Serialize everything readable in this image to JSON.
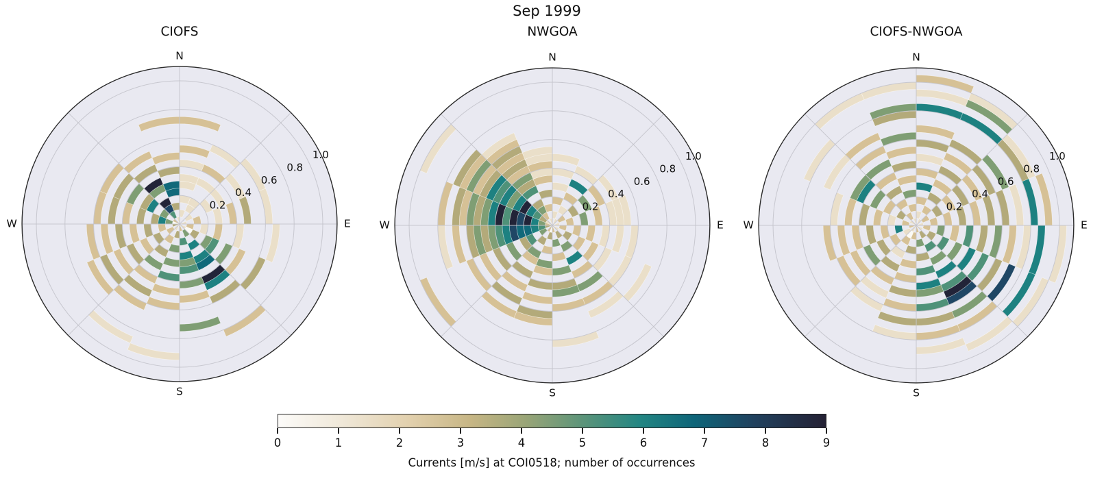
{
  "title": "Sep 1999",
  "polar": {
    "cardinal_labels": [
      "N",
      "E",
      "S",
      "W"
    ],
    "r_tick_labels": [
      "0.2",
      "0.4",
      "0.6",
      "0.8",
      "1.0"
    ],
    "r_ticks": [
      0.2,
      0.4,
      0.6,
      0.8,
      1.0
    ],
    "r_max": 1.1,
    "r_label_angle_deg": 64,
    "sector_count": 16,
    "sector_width_deg": 22.5,
    "ring_width": 0.05
  },
  "chart_data": [
    {
      "type": "polar_histogram",
      "title": "CIOFS",
      "radial_quantity": "current speed [m/s]",
      "value_quantity": "number of occurrences",
      "encoding": "sectors: 16 strings clockwise from N, one char per 0.05 m/s ring from r=0; digit = occurrences (color), '.' = no data",
      "sectors": [
        ".1.1.11.1.2...2",
        "..11..1.2..1",
        ".1..1.1..1..1",
        "1.2..1.2.3..1",
        ".2.1.2..1....1",
        "103.45.4.2..3",
        ".4.6.67.96.3....2",
        "2.5.645.4.2...4",
        ".3.4.4.5.2.2......1",
        "1.2.3.4.2.3.2....1",
        ".2.3.2.3.2.3.2",
        "3.2.3.2.3.2.2",
        "0463.3.2.3.2",
        "2.4.63.4.3.2",
        ".589.49.3.2",
        "1.3.77.3.2....2"
      ]
    },
    {
      "type": "polar_histogram",
      "title": "NWGOA",
      "radial_quantity": "current speed [m/s]",
      "value_quantity": "number of occurrences",
      "encoding": "sectors: 16 strings clockwise from N, one char per 0.05 m/s ring from r=0; digit = occurrences (color), '.' = no data",
      "sectors": [
        ".1.2.1.1.1",
        "1.1.2.6.1",
        ".2.3.4.2.1",
        "1.2.4.2.111",
        ".2.2.2.1.1.1",
        "1.3.2.2.1..1..1",
        ".3.4.6.2.4.2.1",
        "2.4.2.4.34.2....1",
        "03.2.42.3.2.32",
        "2.3.42.3.2.3.2",
        ".4.53.4.3.2.2......2",
        "356778654343.2.1",
        "24698959643423.2",
        "135696465632423....1",
        ".243.534232321",
        "1.2.3.21211"
      ]
    },
    {
      "type": "polar_histogram",
      "title": "CIOFS-NWGOA",
      "radial_quantity": "current speed [m/s]",
      "value_quantity": "number of occurrences",
      "encoding": "sectors: 16 strings clockwise from N, one char per 0.05 m/s ring from r=0; digit = occurrences (color), '.' = no data",
      "sectors": [
        ".1.2.6.2.1.3.2..6.1.2",
        "1.2.3.2.3.2.3...6.41",
        ".2.3.2.3.2.3.4..31",
        "1.2.2.3.2.3.3.1.6.2",
        ".2.4.2.5.3.4.2.1.6..1",
        "1.3.5.4.6.5.3.8..6.1",
        ".3.5.4.6.598.4.2..1",
        "2.4.3.5.64.5.3.2.1",
        ".2.3.2.2.3.2.3.1",
        "102.1.3.2.1.1",
        ".1.2.3.4.2.2",
        "2.6.2.3.2.2.2",
        ".2.1.2.3.2.1",
        "1.3.2.4.64...1..1",
        ".2.2.3.2.4.2.2.....1",
        "1.2.4.2.3.2.4..34..1"
      ]
    }
  ],
  "colorbar": {
    "label": "Currents [m/s] at COI0518; number of occurrences",
    "min": 0,
    "max": 9,
    "ticks": [
      "0",
      "1",
      "2",
      "3",
      "4",
      "5",
      "6",
      "7",
      "8",
      "9"
    ],
    "value_colors": [
      "#fbfaf5",
      "#eadfc9",
      "#d6c196",
      "#b3aa7a",
      "#7f9e74",
      "#4f9279",
      "#1d8181",
      "#11697a",
      "#1f4765",
      "#222438"
    ],
    "gradient_stops": [
      [
        0.0,
        "#fcfbf9"
      ],
      [
        0.12,
        "#efe7d7"
      ],
      [
        0.24,
        "#e2d0ad"
      ],
      [
        0.35,
        "#c7b685"
      ],
      [
        0.45,
        "#9aa577"
      ],
      [
        0.55,
        "#5f9579"
      ],
      [
        0.66,
        "#238683"
      ],
      [
        0.76,
        "#0e6579"
      ],
      [
        0.87,
        "#21415e"
      ],
      [
        1.0,
        "#242134"
      ]
    ]
  },
  "style": {
    "disc_color": "#e9e9f1",
    "grid_color": "#c3c3cb",
    "outer_ring_color": "#2a2a2a",
    "text_color": "#111111",
    "background": "#ffffff"
  }
}
